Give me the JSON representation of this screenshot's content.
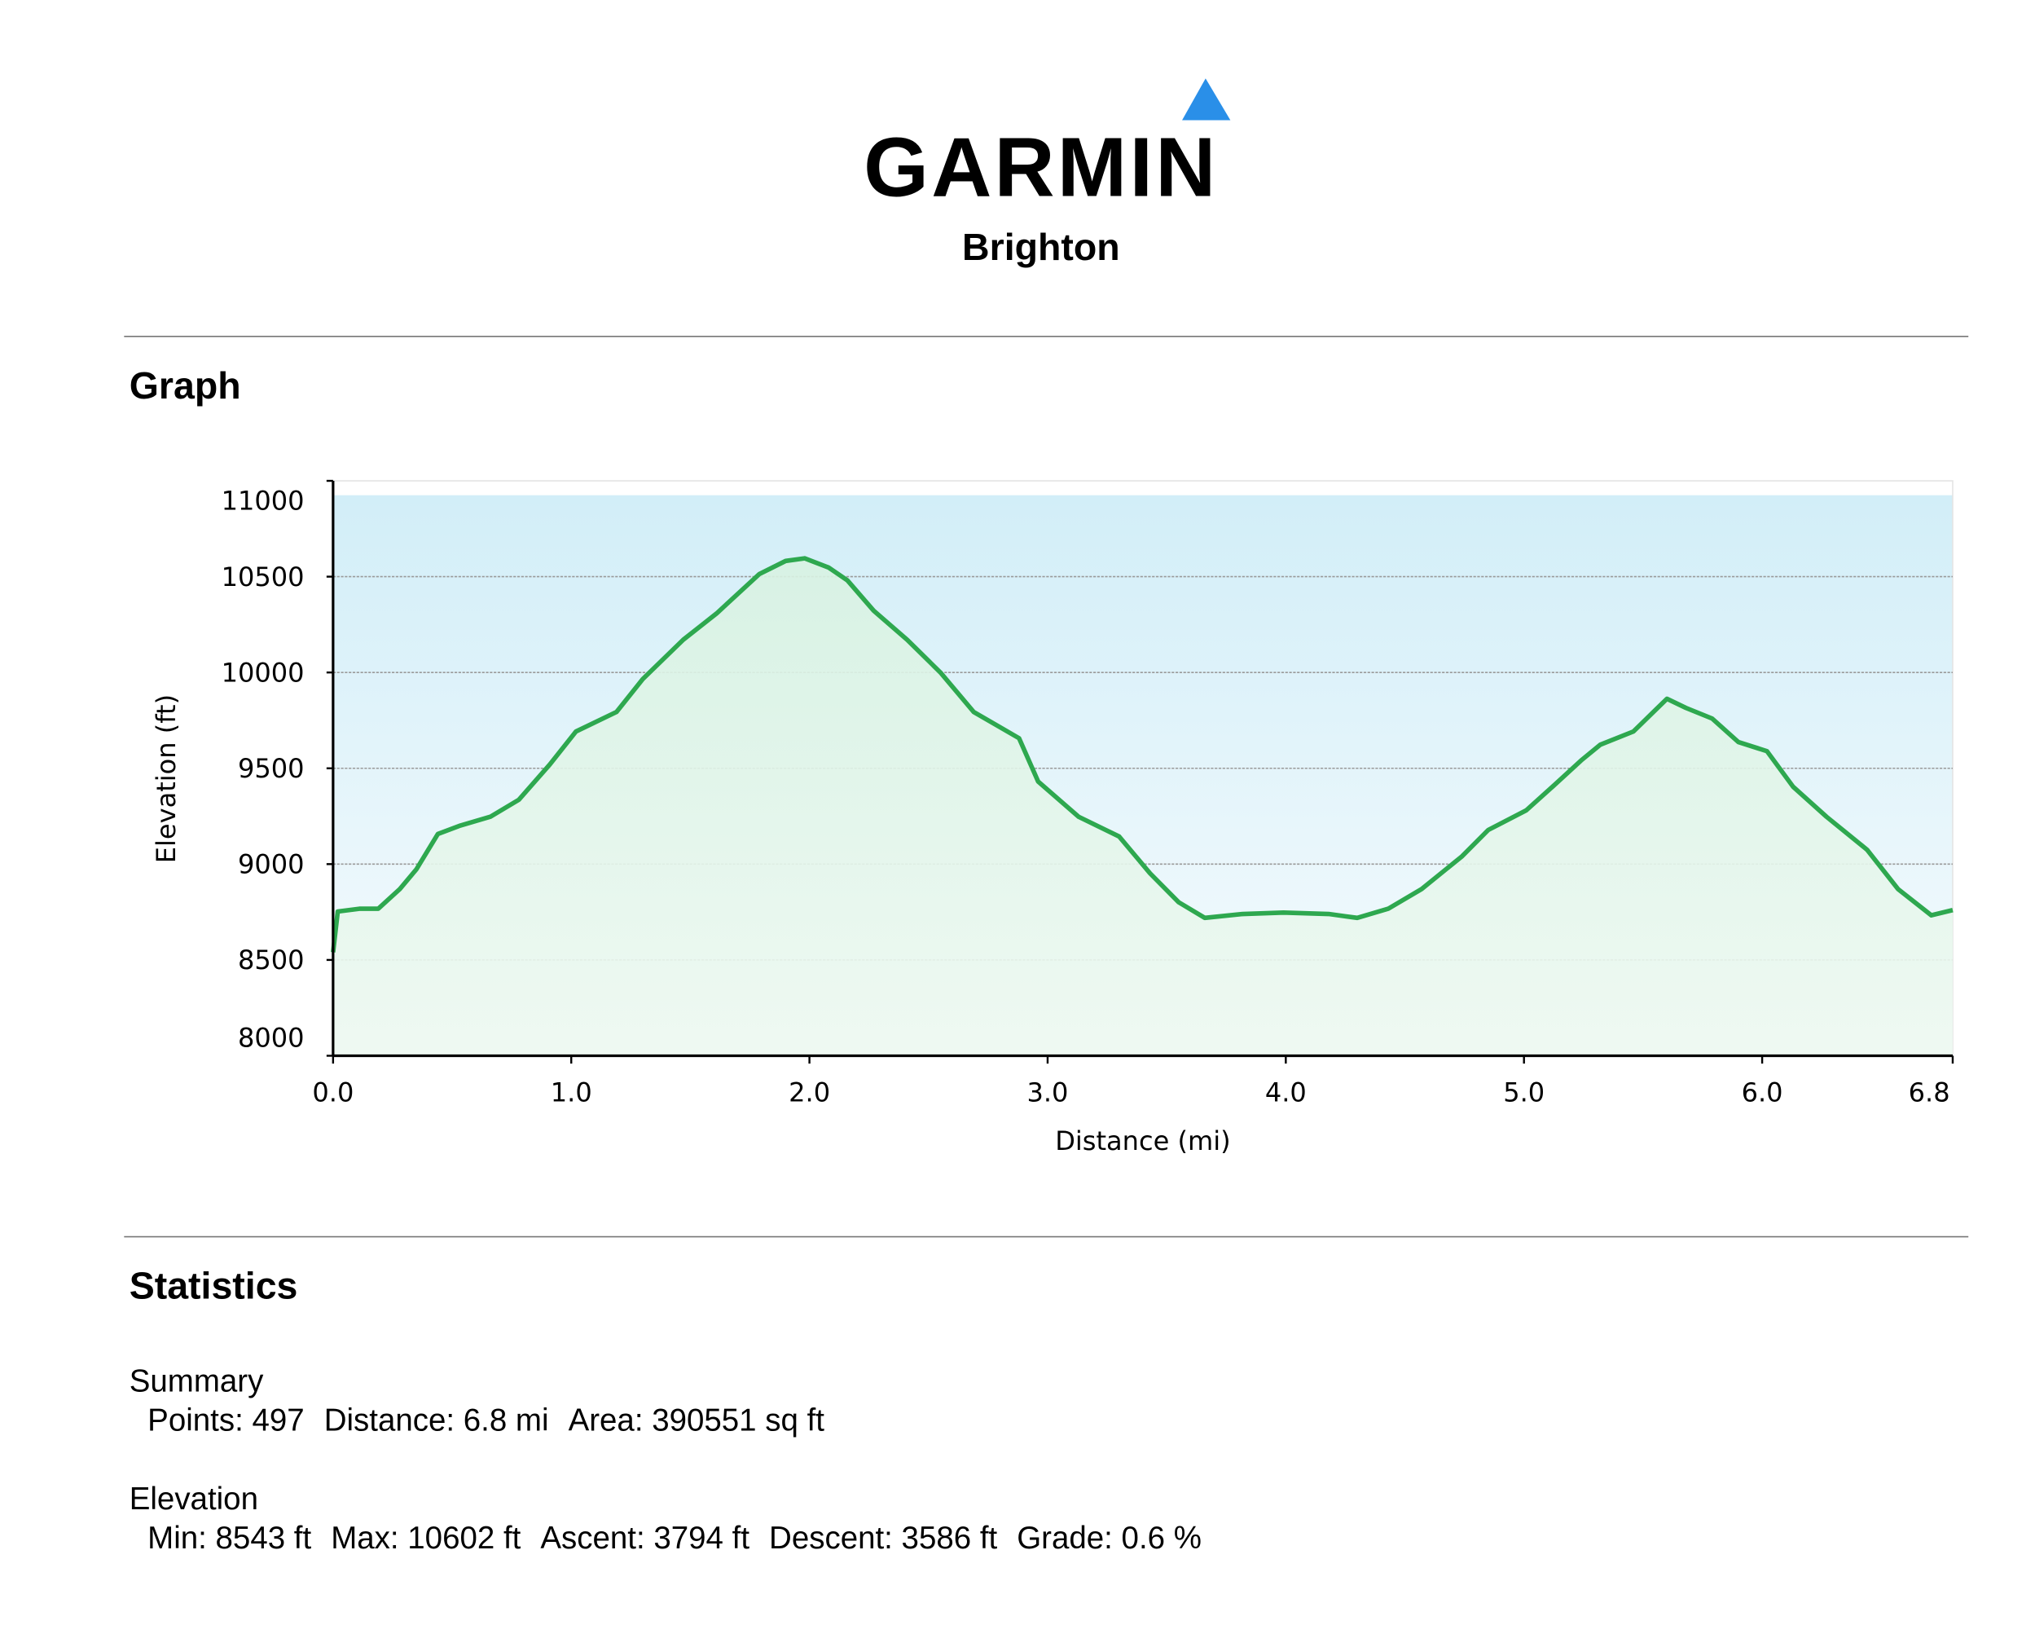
{
  "header": {
    "logo": "GARMIN",
    "title": "Brighton"
  },
  "graph_heading": "Graph",
  "chart_data": {
    "type": "line",
    "color": "#2ea84f",
    "xlabel": "Distance (mi)",
    "ylabel": "Elevation (ft)",
    "x": [
      0.0,
      0.02,
      0.11,
      0.19,
      0.28,
      0.35,
      0.44,
      0.53,
      0.66,
      0.78,
      0.91,
      1.02,
      1.19,
      1.3,
      1.47,
      1.61,
      1.79,
      1.9,
      1.98,
      2.08,
      2.16,
      2.27,
      2.41,
      2.55,
      2.69,
      2.88,
      2.96,
      3.13,
      3.3,
      3.43,
      3.55,
      3.66,
      3.82,
      3.99,
      4.18,
      4.3,
      4.43,
      4.57,
      4.74,
      4.85,
      5.01,
      5.12,
      5.24,
      5.32,
      5.46,
      5.6,
      5.68,
      5.79,
      5.9,
      6.02,
      6.13,
      6.27,
      6.44,
      6.57,
      6.71,
      6.8
    ],
    "values": [
      8540,
      8753,
      8767,
      8767,
      8870,
      8973,
      9157,
      9199,
      9247,
      9336,
      9520,
      9692,
      9794,
      9966,
      10171,
      10308,
      10514,
      10582,
      10596,
      10548,
      10480,
      10322,
      10171,
      10000,
      9794,
      9657,
      9431,
      9247,
      9144,
      8952,
      8801,
      8719,
      8740,
      8747,
      8740,
      8719,
      8767,
      8870,
      9041,
      9178,
      9281,
      9404,
      9541,
      9623,
      9692,
      9863,
      9815,
      9760,
      9637,
      9589,
      9404,
      9247,
      9075,
      8870,
      8733,
      8760
    ],
    "xlim": [
      0,
      6.8
    ],
    "xticks": [
      {
        "value": 0,
        "label": "0.0"
      },
      {
        "value": 1,
        "label": "1.0"
      },
      {
        "value": 2,
        "label": "2.0"
      },
      {
        "value": 3,
        "label": "3.0"
      },
      {
        "value": 4,
        "label": "4.0"
      },
      {
        "value": 5,
        "label": "5.0"
      },
      {
        "value": 6,
        "label": "6.0"
      },
      6.8
    ],
    "ylim": [
      8000,
      11000
    ],
    "yticks": [
      8000,
      8500,
      9000,
      9500,
      10000,
      10500,
      11000
    ],
    "grid": true
  },
  "statistics": {
    "heading": "Statistics",
    "groups": [
      {
        "title": "Summary",
        "items": [
          "Points: 497",
          "Distance: 6.8 mi",
          "Area: 390551 sq ft"
        ]
      },
      {
        "title": "Elevation",
        "items": [
          "Min: 8543 ft",
          "Max: 10602 ft",
          "Ascent: 3794 ft",
          "Descent: 3586 ft",
          "Grade: 0.6 %"
        ]
      }
    ]
  }
}
